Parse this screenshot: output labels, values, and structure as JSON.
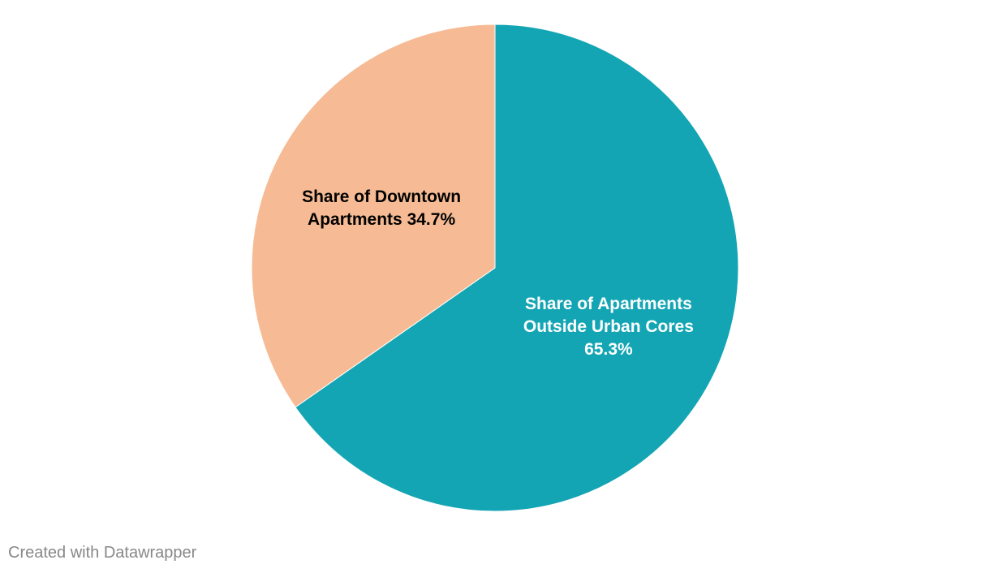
{
  "chart_data": {
    "type": "pie",
    "categories": [
      "Share of Apartments Outside Urban Cores",
      "Share of Downtown Apartments"
    ],
    "values": [
      65.3,
      34.7
    ],
    "value_labels": [
      "65.3%",
      "34.7%"
    ],
    "colors": [
      "#14a5b4",
      "#f6bb94"
    ],
    "label_colors": [
      "#ffffff",
      "#000000"
    ]
  },
  "footer": "Created with Datawrapper"
}
